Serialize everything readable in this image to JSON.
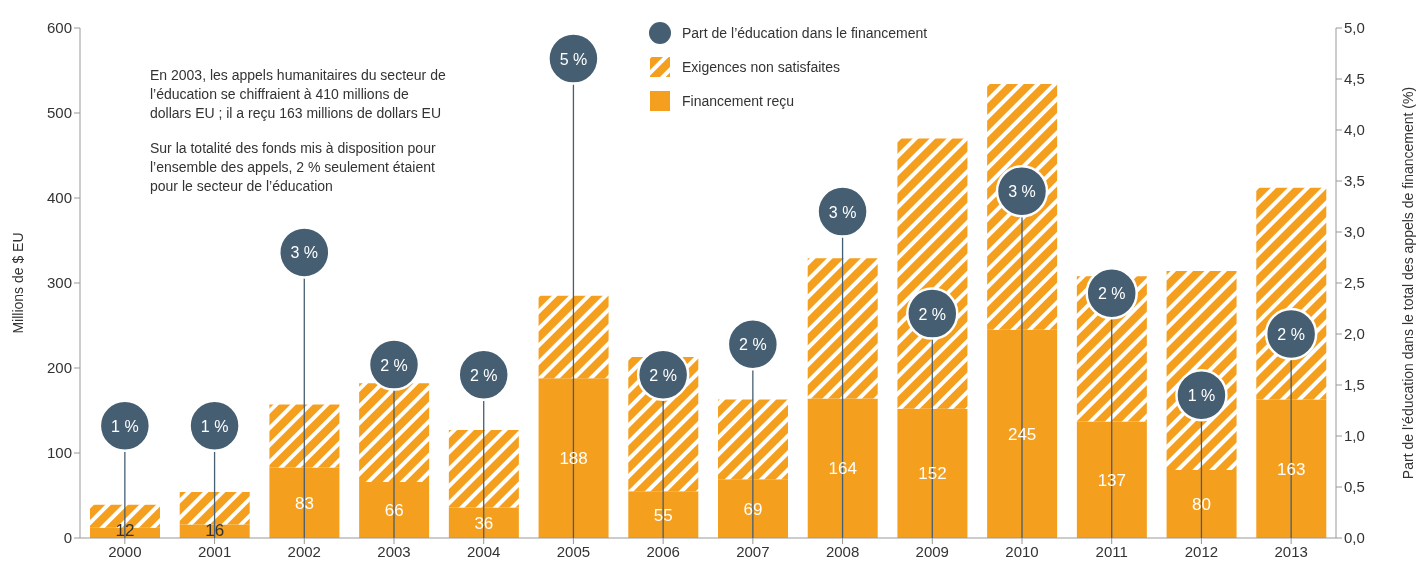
{
  "chart_data": {
    "type": "bar",
    "stacked": true,
    "ylabel": "Millions de $ EU",
    "y2label": "Part de l’éducation dans le total des appels de financement (%)",
    "categories": [
      "2000",
      "2001",
      "2002",
      "2003",
      "2004",
      "2005",
      "2006",
      "2007",
      "2008",
      "2009",
      "2010",
      "2011",
      "2012",
      "2013"
    ],
    "series": [
      {
        "name": "Part de l’éducation dans le financement",
        "type": "lollipop",
        "axis": "y2",
        "color": "#455e72",
        "values": [
          1.1,
          1.1,
          2.8,
          1.7,
          1.6,
          4.7,
          1.6,
          1.9,
          3.2,
          2.2,
          3.4,
          2.4,
          1.4,
          2.0
        ],
        "value_labels": [
          "1 %",
          "1 %",
          "3 %",
          "2 %",
          "2 %",
          "5 %",
          "2 %",
          "2 %",
          "3 %",
          "2 %",
          "3 %",
          "2 %",
          "1 %",
          "2 %"
        ]
      },
      {
        "name": "Financement reçu",
        "color": "#f59f1f",
        "values": [
          12,
          16,
          83,
          66,
          36,
          188,
          55,
          69,
          164,
          152,
          245,
          137,
          80,
          163
        ],
        "value_labels": [
          "12",
          "16",
          "83",
          "66",
          "36",
          "188",
          "55",
          "69",
          "164",
          "152",
          "245",
          "137",
          "80",
          "163"
        ]
      },
      {
        "name": "Exigences non satisfaites",
        "color": "#f59f1f",
        "values": [
          27,
          38,
          74,
          116,
          91,
          97,
          158,
          94,
          165,
          318,
          289,
          171,
          234,
          249
        ]
      }
    ],
    "ylim": [
      0,
      600
    ],
    "yticks": [
      0,
      100,
      200,
      300,
      400,
      500,
      600
    ],
    "y2lim": [
      0,
      5
    ],
    "y2ticks": [
      {
        "value": 0,
        "label": "0,0"
      },
      {
        "value": 0.5,
        "label": "0,5"
      },
      {
        "value": 1,
        "label": "1,0"
      },
      {
        "value": 1.5,
        "label": "1,5"
      },
      {
        "value": 2,
        "label": "2,0"
      },
      {
        "value": 2.5,
        "label": "2,5"
      },
      {
        "value": 3,
        "label": "3,0"
      },
      {
        "value": 3.5,
        "label": "3,5"
      },
      {
        "value": 4,
        "label": "4,0"
      },
      {
        "value": 4.5,
        "label": "4,5"
      },
      {
        "value": 5,
        "label": "5,0"
      }
    ],
    "grid": false,
    "legend": "top",
    "annotations": [
      "En 2003, les appels humanitaires du secteur de l’éducation se chiffraient à 410 millions de dollars EU ; il a reçu 163 millions de dollars EU",
      "Sur la totalité des fonds mis à disposition pour l’ensemble des appels, 2 % seulement étaient pour le secteur de l’éducation"
    ]
  }
}
